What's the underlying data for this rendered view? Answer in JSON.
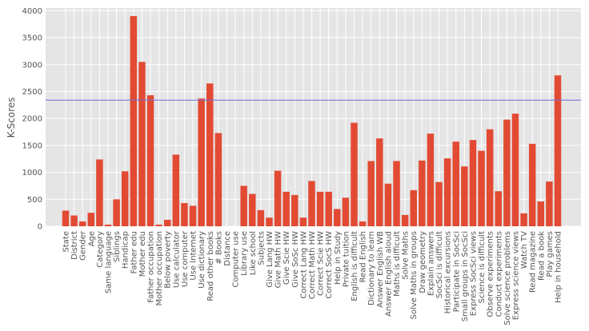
{
  "chart_data": {
    "type": "bar",
    "title": "",
    "xlabel": "",
    "ylabel": "K-Scores",
    "ylim": [
      0,
      4050
    ],
    "yticks": [
      0,
      500,
      1000,
      1500,
      2000,
      2500,
      3000,
      3500,
      4000
    ],
    "grid": true,
    "bar_color": "#E24A33",
    "background_color": "#E5E5E5",
    "reference_line": {
      "value": 2340,
      "color": "#6F6FD8"
    },
    "categories": [
      "State",
      "District",
      "Gender",
      "Age",
      "Category",
      "Same language",
      "Siblings",
      "Handicap",
      "Father edu",
      "Mother edu",
      "Father occupation",
      "Mother occupation",
      "Below poverty",
      "Use calculator",
      "Use computer",
      "Use Internet",
      "Use dictionary",
      "Read other books",
      "# Books",
      "Distance",
      "Computer use",
      "Library use",
      "Like school",
      "Subjects",
      "Give Lang HW",
      "Give Math HW",
      "Give Scie HW",
      "Give SoSc HW",
      "Correct Lang HW",
      "Correct Math HW",
      "Correct Scie HW",
      "Correct SocS HW",
      "Help in Study",
      "Private tuition",
      "English is difficult",
      "Read English",
      "Dictionary to learn",
      "Answer English WB",
      "Answer English aloud",
      "Maths is difficult",
      "Solve Maths",
      "Solve Maths in groups",
      "Draw geometry",
      "Explain answers",
      "SocSci is difficult",
      "Historical excursions",
      "Participate in SocSci",
      "Small groups in SocSci",
      "Express SocSci views",
      "Science is difficult",
      "Observe experiments",
      "Conduct experiments",
      "Solve science problems",
      "Express science views",
      "Watch TV",
      "Read magazine",
      "Read a book",
      "Play games",
      "Help in household"
    ],
    "values": [
      290,
      200,
      90,
      250,
      1240,
      30,
      500,
      1020,
      3900,
      3050,
      2430,
      30,
      120,
      1330,
      430,
      380,
      2370,
      2650,
      1730,
      0,
      0,
      750,
      600,
      300,
      160,
      1030,
      640,
      580,
      160,
      840,
      640,
      640,
      320,
      530,
      1920,
      90,
      1210,
      1630,
      790,
      1210,
      210,
      670,
      1220,
      1720,
      820,
      1260,
      1570,
      1110,
      1600,
      1400,
      1800,
      650,
      1980,
      2090,
      240,
      1530,
      460,
      830,
      2800
    ]
  }
}
